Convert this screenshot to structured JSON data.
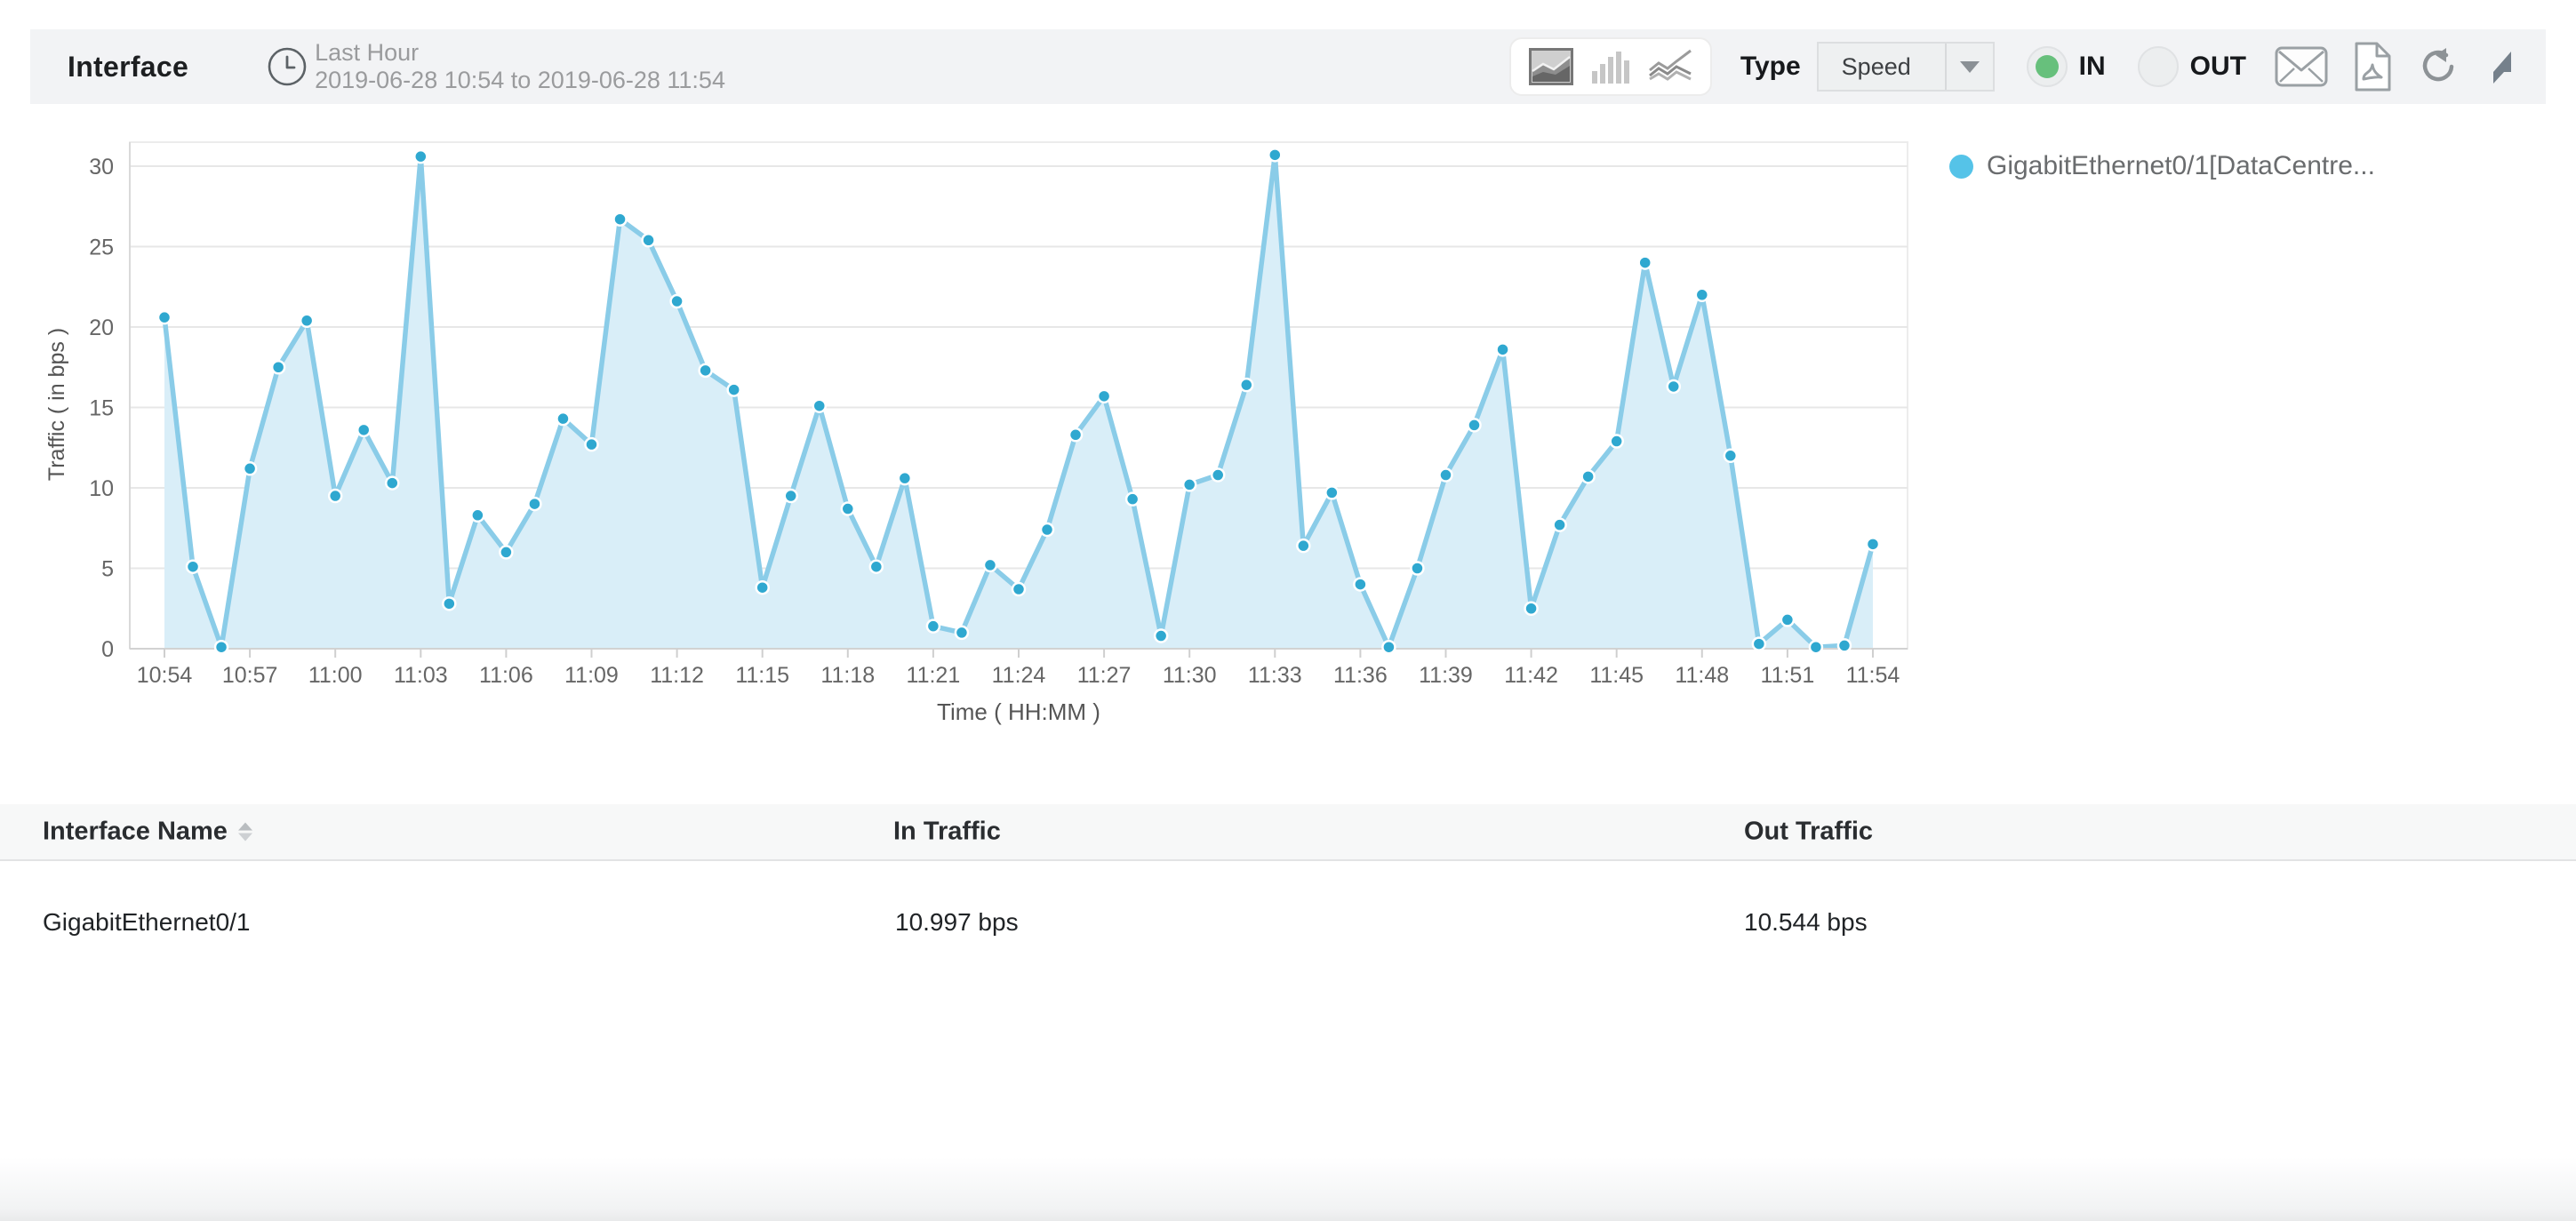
{
  "header": {
    "title": "Interface",
    "period_label": "Last Hour",
    "period_range": "2019-06-28 10:54 to 2019-06-28 11:54",
    "type_label": "Type",
    "type_value": "Speed",
    "in_label": "IN",
    "out_label": "OUT",
    "direction_selected": "IN",
    "radio_green": "#67c07c"
  },
  "chart_data": {
    "type": "area",
    "title": "",
    "xlabel": "Time ( HH:MM )",
    "ylabel": "Traffic ( in bps )",
    "ylim": [
      0,
      30
    ],
    "yticks": [
      0,
      5,
      10,
      15,
      20,
      25,
      30
    ],
    "x_tick_every": 3,
    "grid": true,
    "legend_position": "top-right",
    "x": [
      "10:54",
      "10:55",
      "10:56",
      "10:57",
      "10:58",
      "10:59",
      "11:00",
      "11:01",
      "11:02",
      "11:03",
      "11:04",
      "11:05",
      "11:06",
      "11:07",
      "11:08",
      "11:09",
      "11:10",
      "11:11",
      "11:12",
      "11:13",
      "11:14",
      "11:15",
      "11:16",
      "11:17",
      "11:18",
      "11:19",
      "11:20",
      "11:21",
      "11:22",
      "11:23",
      "11:24",
      "11:25",
      "11:26",
      "11:27",
      "11:28",
      "11:29",
      "11:30",
      "11:31",
      "11:32",
      "11:33",
      "11:34",
      "11:35",
      "11:36",
      "11:37",
      "11:38",
      "11:39",
      "11:40",
      "11:41",
      "11:42",
      "11:43",
      "11:44",
      "11:45",
      "11:46",
      "11:47",
      "11:48",
      "11:49",
      "11:50",
      "11:51",
      "11:52",
      "11:53",
      "11:54"
    ],
    "series": [
      {
        "name": "GigabitEthernet0/1[DataCentre...",
        "values": [
          20.6,
          5.1,
          0.1,
          11.2,
          17.5,
          20.4,
          9.5,
          13.6,
          10.3,
          30.6,
          2.8,
          8.3,
          6.0,
          9.0,
          14.3,
          12.7,
          26.7,
          25.4,
          21.6,
          17.3,
          16.1,
          3.8,
          9.5,
          15.1,
          8.7,
          5.1,
          10.6,
          1.4,
          1.0,
          5.2,
          3.7,
          7.4,
          13.3,
          15.7,
          9.3,
          0.8,
          10.2,
          10.8,
          16.4,
          30.7,
          6.4,
          9.7,
          4.0,
          0.1,
          5.0,
          10.8,
          13.9,
          18.6,
          2.5,
          7.7,
          10.7,
          12.9,
          24.0,
          16.3,
          22.0,
          12.0,
          0.3,
          1.8,
          0.1,
          0.2,
          6.5
        ]
      }
    ],
    "colors": {
      "line": "#8acce8",
      "fill": "#d9eef8",
      "marker": "#2fa8d0"
    }
  },
  "legend": {
    "label": "GigabitEthernet0/1[DataCentre...",
    "dot_color": "#55c3e8"
  },
  "table": {
    "columns": [
      {
        "label": "Interface Name",
        "sortable": true
      },
      {
        "label": "In Traffic"
      },
      {
        "label": "Out Traffic"
      }
    ],
    "rows": [
      {
        "interface_name": "GigabitEthernet0/1",
        "in_traffic": "10.997 bps",
        "out_traffic": "10.544 bps"
      }
    ]
  }
}
